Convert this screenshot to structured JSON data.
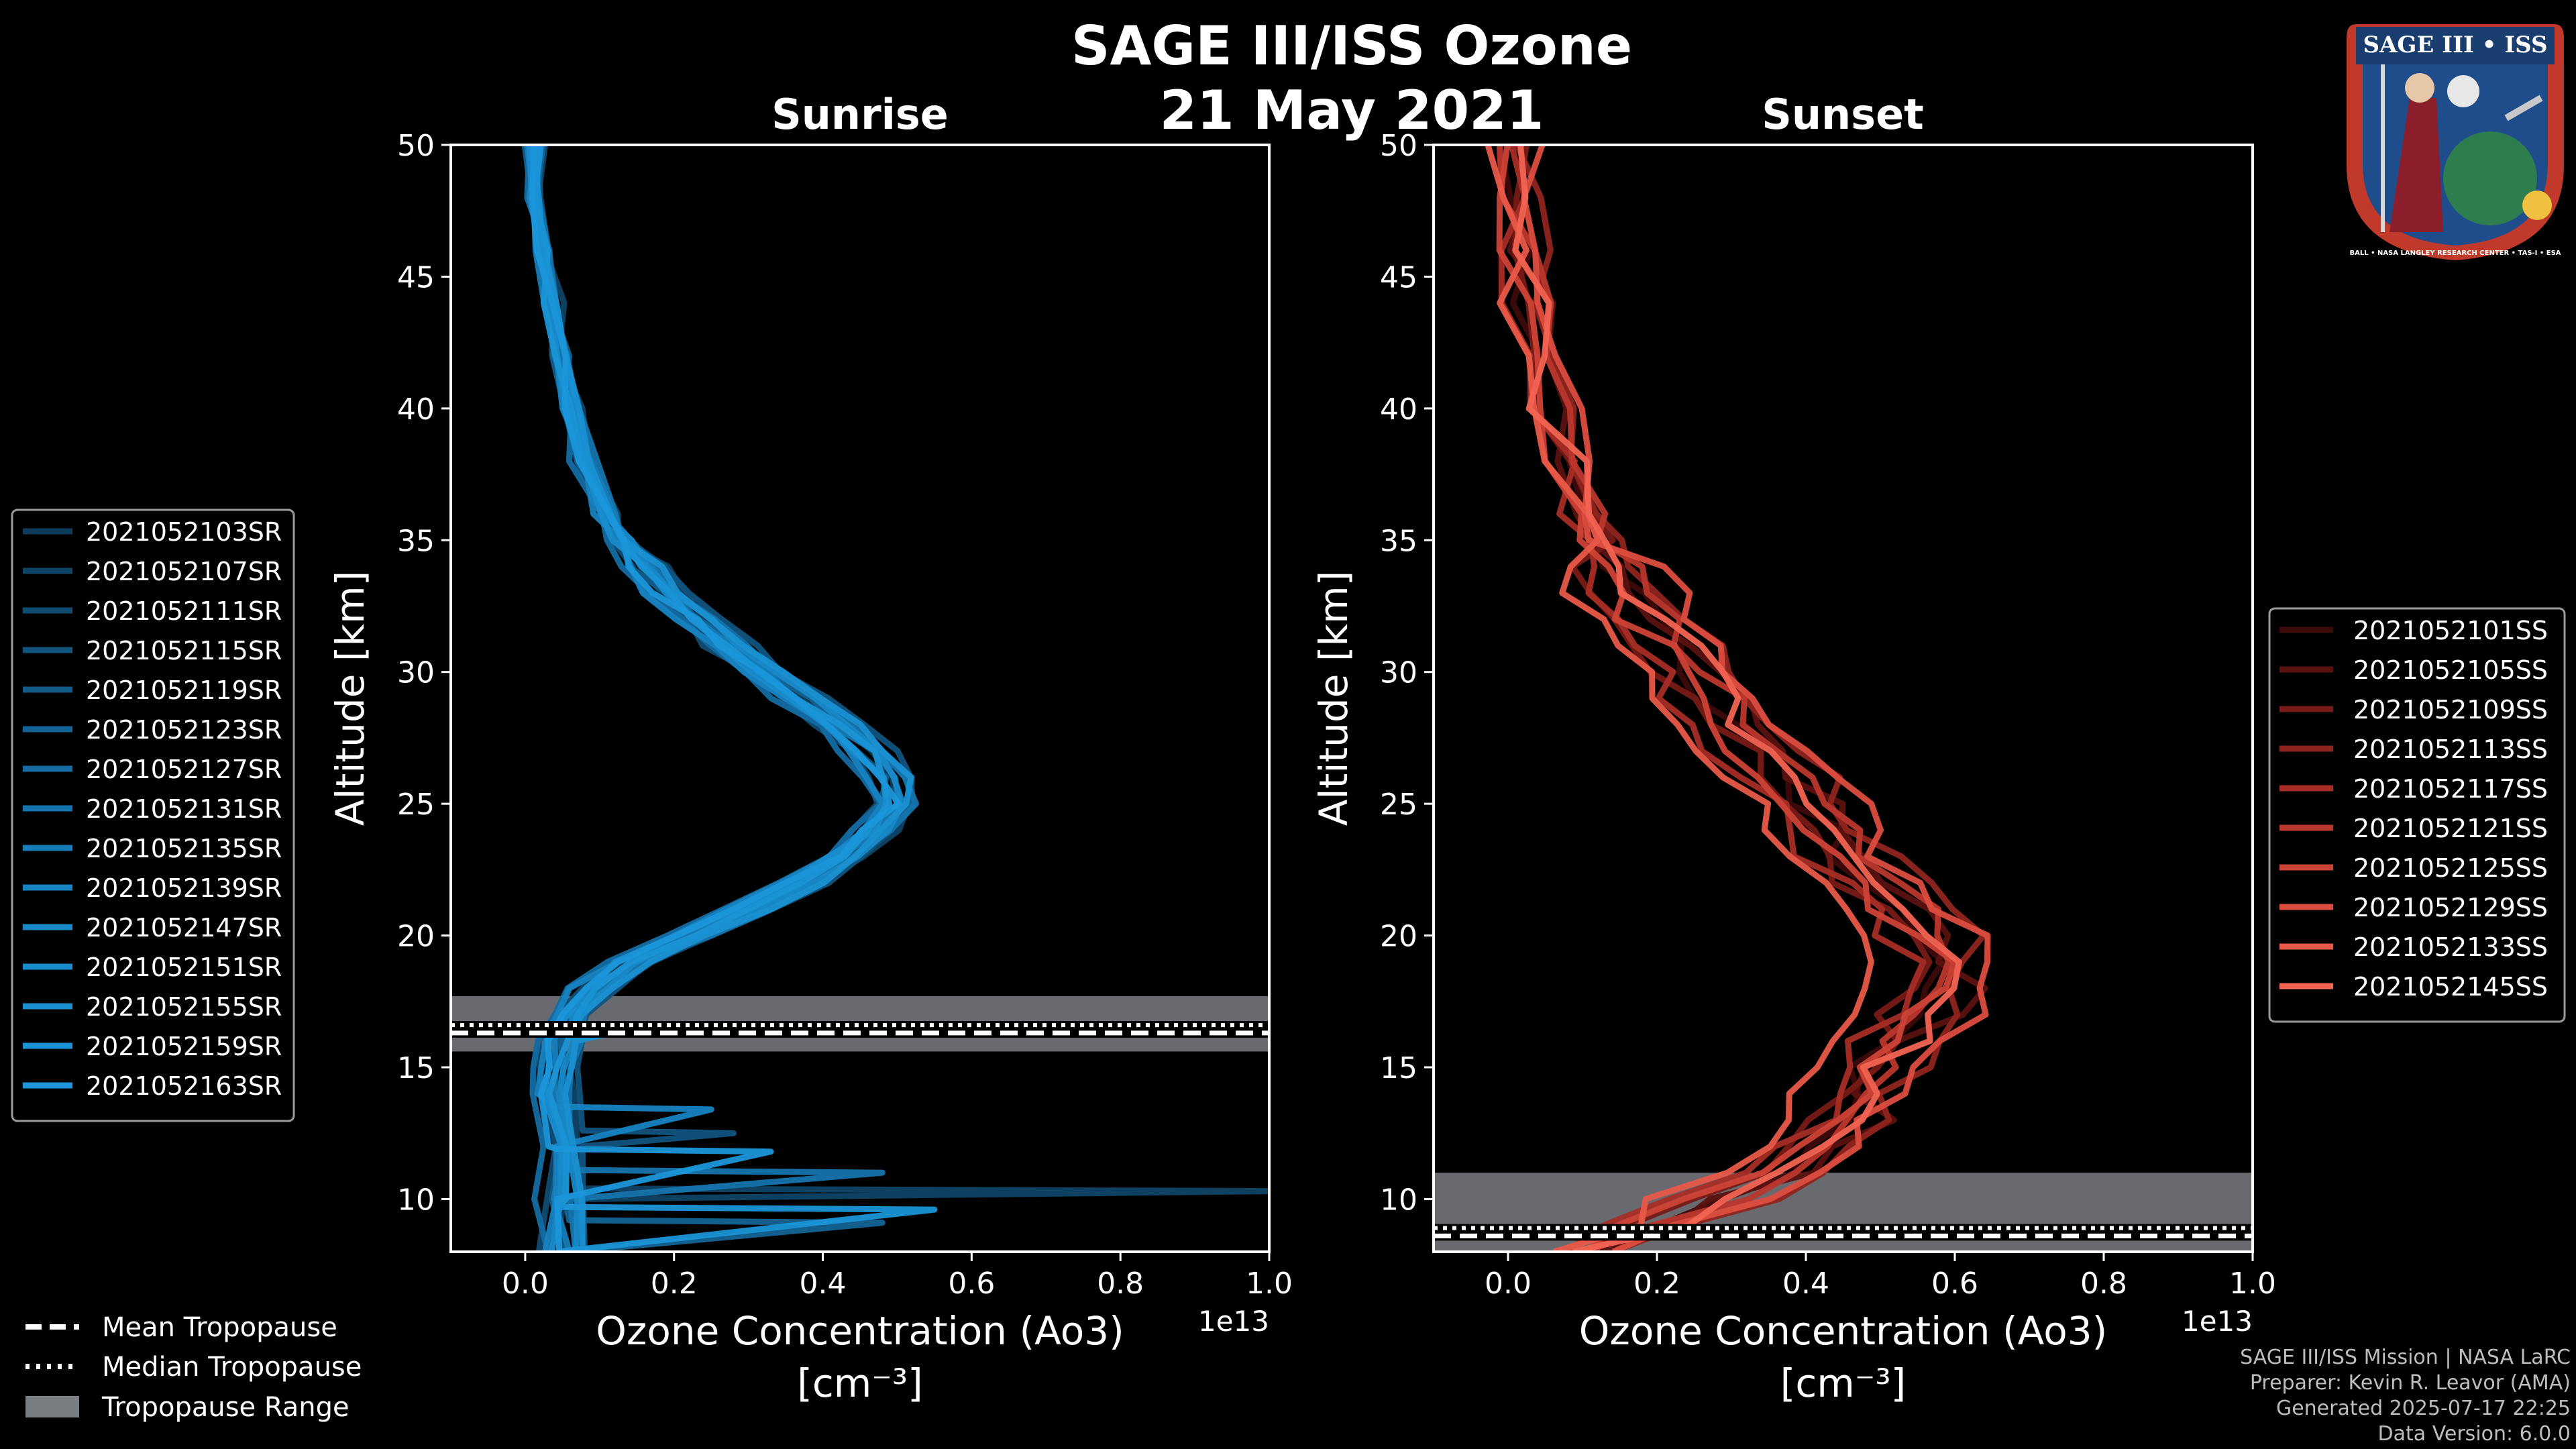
{
  "figure": {
    "title_line1": "SAGE III/ISS Ozone",
    "title_line2": "21 May 2021",
    "credits": [
      "SAGE III/ISS Mission | NASA LaRC",
      "Preparer: Kevin R. Leavor (AMA)",
      "Generated 2025-07-17 22:25",
      "Data Version: 6.0.0"
    ],
    "badge": {
      "top_text": "SAGE III • ISS",
      "ring_text": "BALL • NASA LANGLEY RESEARCH CENTER • TAS-I • ESA",
      "fill": "#1f4d8c",
      "ring": "#c0392b"
    },
    "tropopause_legend": {
      "mean": "Mean Tropopause",
      "median": "Median Tropopause",
      "range": "Tropopause Range"
    },
    "colors": {
      "sunrise": "#1a8fd0",
      "sunset": "#f06050",
      "trop_range": "#7a7d82"
    }
  },
  "chart_data": [
    {
      "type": "line",
      "title": "Sunrise",
      "xlabel": "Ozone Concentration (Ao3)",
      "xunit": "[cm⁻³]",
      "ylabel": "Altitude [km]",
      "x_scale_label": "1e13",
      "xlim": [
        -0.1,
        1.0
      ],
      "ylim": [
        8,
        50
      ],
      "xticks": [
        0.0,
        0.2,
        0.4,
        0.6,
        0.8,
        1.0
      ],
      "xtick_labels": [
        "0.0",
        "0.2",
        "0.4",
        "0.6",
        "0.8",
        "1.0"
      ],
      "yticks": [
        10,
        15,
        20,
        25,
        30,
        35,
        40,
        45,
        50
      ],
      "tropopause": {
        "mean": 16.3,
        "median": 16.6,
        "range": [
          15.6,
          17.7
        ]
      },
      "base_profile": {
        "altitude": [
          8,
          10,
          12,
          14,
          15,
          16,
          17,
          18,
          19,
          20,
          21,
          22,
          23,
          24,
          25,
          26,
          27,
          28,
          29,
          30,
          31,
          32,
          33,
          34,
          35,
          36,
          38,
          40,
          42,
          44,
          46,
          48,
          50
        ],
        "ozone": [
          0.05,
          0.05,
          0.05,
          0.04,
          0.05,
          0.05,
          0.06,
          0.09,
          0.14,
          0.22,
          0.3,
          0.37,
          0.43,
          0.47,
          0.5,
          0.49,
          0.46,
          0.42,
          0.37,
          0.32,
          0.27,
          0.23,
          0.19,
          0.16,
          0.13,
          0.11,
          0.08,
          0.06,
          0.045,
          0.035,
          0.025,
          0.017,
          0.012
        ]
      },
      "legend_position": "left",
      "series": [
        {
          "name": "2021052103SR",
          "color": "#0d3d5a",
          "shift": 0.0,
          "spikes": []
        },
        {
          "name": "2021052107SR",
          "color": "#0f4466",
          "shift": 0.02,
          "spikes": [
            [
              10.3,
              1.0
            ]
          ]
        },
        {
          "name": "2021052111SR",
          "color": "#104c72",
          "shift": -0.02,
          "spikes": []
        },
        {
          "name": "2021052115SR",
          "color": "#11547e",
          "shift": 0.03,
          "spikes": [
            [
              12.5,
              0.28
            ]
          ]
        },
        {
          "name": "2021052119SR",
          "color": "#125c8a",
          "shift": -0.01,
          "spikes": []
        },
        {
          "name": "2021052123SR",
          "color": "#136496",
          "shift": 0.01,
          "spikes": [
            [
              9.1,
              0.48
            ]
          ]
        },
        {
          "name": "2021052127SR",
          "color": "#146ca2",
          "shift": -0.03,
          "spikes": []
        },
        {
          "name": "2021052131SR",
          "color": "#1574ad",
          "shift": 0.02,
          "spikes": [
            [
              11.0,
              0.48
            ]
          ]
        },
        {
          "name": "2021052135SR",
          "color": "#167cb8",
          "shift": 0.0,
          "spikes": []
        },
        {
          "name": "2021052139SR",
          "color": "#1783c2",
          "shift": -0.02,
          "spikes": [
            [
              13.4,
              0.25
            ]
          ]
        },
        {
          "name": "2021052147SR",
          "color": "#1888c8",
          "shift": 0.01,
          "spikes": [
            [
              10.0,
              1.0
            ]
          ]
        },
        {
          "name": "2021052151SR",
          "color": "#198cce",
          "shift": -0.01,
          "spikes": []
        },
        {
          "name": "2021052155SR",
          "color": "#1a90d2",
          "shift": 0.02,
          "spikes": [
            [
              16.5,
              0.15
            ]
          ]
        },
        {
          "name": "2021052159SR",
          "color": "#1a93d6",
          "shift": 0.0,
          "spikes": [
            [
              9.6,
              0.55
            ]
          ]
        },
        {
          "name": "2021052163SR",
          "color": "#1b96da",
          "shift": -0.01,
          "spikes": [
            [
              11.8,
              0.33
            ]
          ]
        }
      ]
    },
    {
      "type": "line",
      "title": "Sunset",
      "xlabel": "Ozone Concentration (Ao3)",
      "xunit": "[cm⁻³]",
      "ylabel": "Altitude [km]",
      "x_scale_label": "1e13",
      "xlim": [
        -0.1,
        1.0
      ],
      "ylim": [
        8,
        50
      ],
      "xticks": [
        0.0,
        0.2,
        0.4,
        0.6,
        0.8,
        1.0
      ],
      "xtick_labels": [
        "0.0",
        "0.2",
        "0.4",
        "0.6",
        "0.8",
        "1.0"
      ],
      "yticks": [
        10,
        15,
        20,
        25,
        30,
        35,
        40,
        45,
        50
      ],
      "tropopause": {
        "mean": 8.6,
        "median": 8.9,
        "range": [
          8.0,
          11.0
        ]
      },
      "base_profile": {
        "altitude": [
          8,
          9,
          10,
          11,
          12,
          13,
          14,
          15,
          16,
          17,
          18,
          19,
          20,
          21,
          22,
          23,
          24,
          25,
          26,
          27,
          28,
          29,
          30,
          31,
          32,
          33,
          34,
          35,
          36,
          38,
          40,
          42,
          44,
          46,
          48,
          50
        ],
        "ozone": [
          0.1,
          0.2,
          0.28,
          0.36,
          0.42,
          0.45,
          0.47,
          0.49,
          0.52,
          0.55,
          0.57,
          0.58,
          0.56,
          0.53,
          0.49,
          0.45,
          0.43,
          0.4,
          0.37,
          0.34,
          0.31,
          0.28,
          0.25,
          0.22,
          0.19,
          0.16,
          0.14,
          0.12,
          0.1,
          0.075,
          0.055,
          0.04,
          0.03,
          0.02,
          0.012,
          0.008
        ]
      },
      "legend_position": "right",
      "series": [
        {
          "name": "2021052101SS",
          "color": "#3d0a0a",
          "shift": 0.0,
          "spikes": []
        },
        {
          "name": "2021052105SS",
          "color": "#5a1210",
          "shift": 0.03,
          "spikes": []
        },
        {
          "name": "2021052109SS",
          "color": "#761a16",
          "shift": -0.03,
          "spikes": []
        },
        {
          "name": "2021052113SS",
          "color": "#8f241d",
          "shift": 0.05,
          "spikes": []
        },
        {
          "name": "2021052117SS",
          "color": "#a62d25",
          "shift": -0.05,
          "spikes": []
        },
        {
          "name": "2021052121SS",
          "color": "#bb372d",
          "shift": 0.02,
          "spikes": []
        },
        {
          "name": "2021052125SS",
          "color": "#cd4236",
          "shift": -0.02,
          "spikes": []
        },
        {
          "name": "2021052129SS",
          "color": "#dc4d3f",
          "shift": 0.06,
          "spikes": []
        },
        {
          "name": "2021052133SS",
          "color": "#e85848",
          "shift": -0.06,
          "spikes": []
        },
        {
          "name": "2021052145SS",
          "color": "#f26352",
          "shift": 0.01,
          "spikes": []
        }
      ]
    }
  ]
}
